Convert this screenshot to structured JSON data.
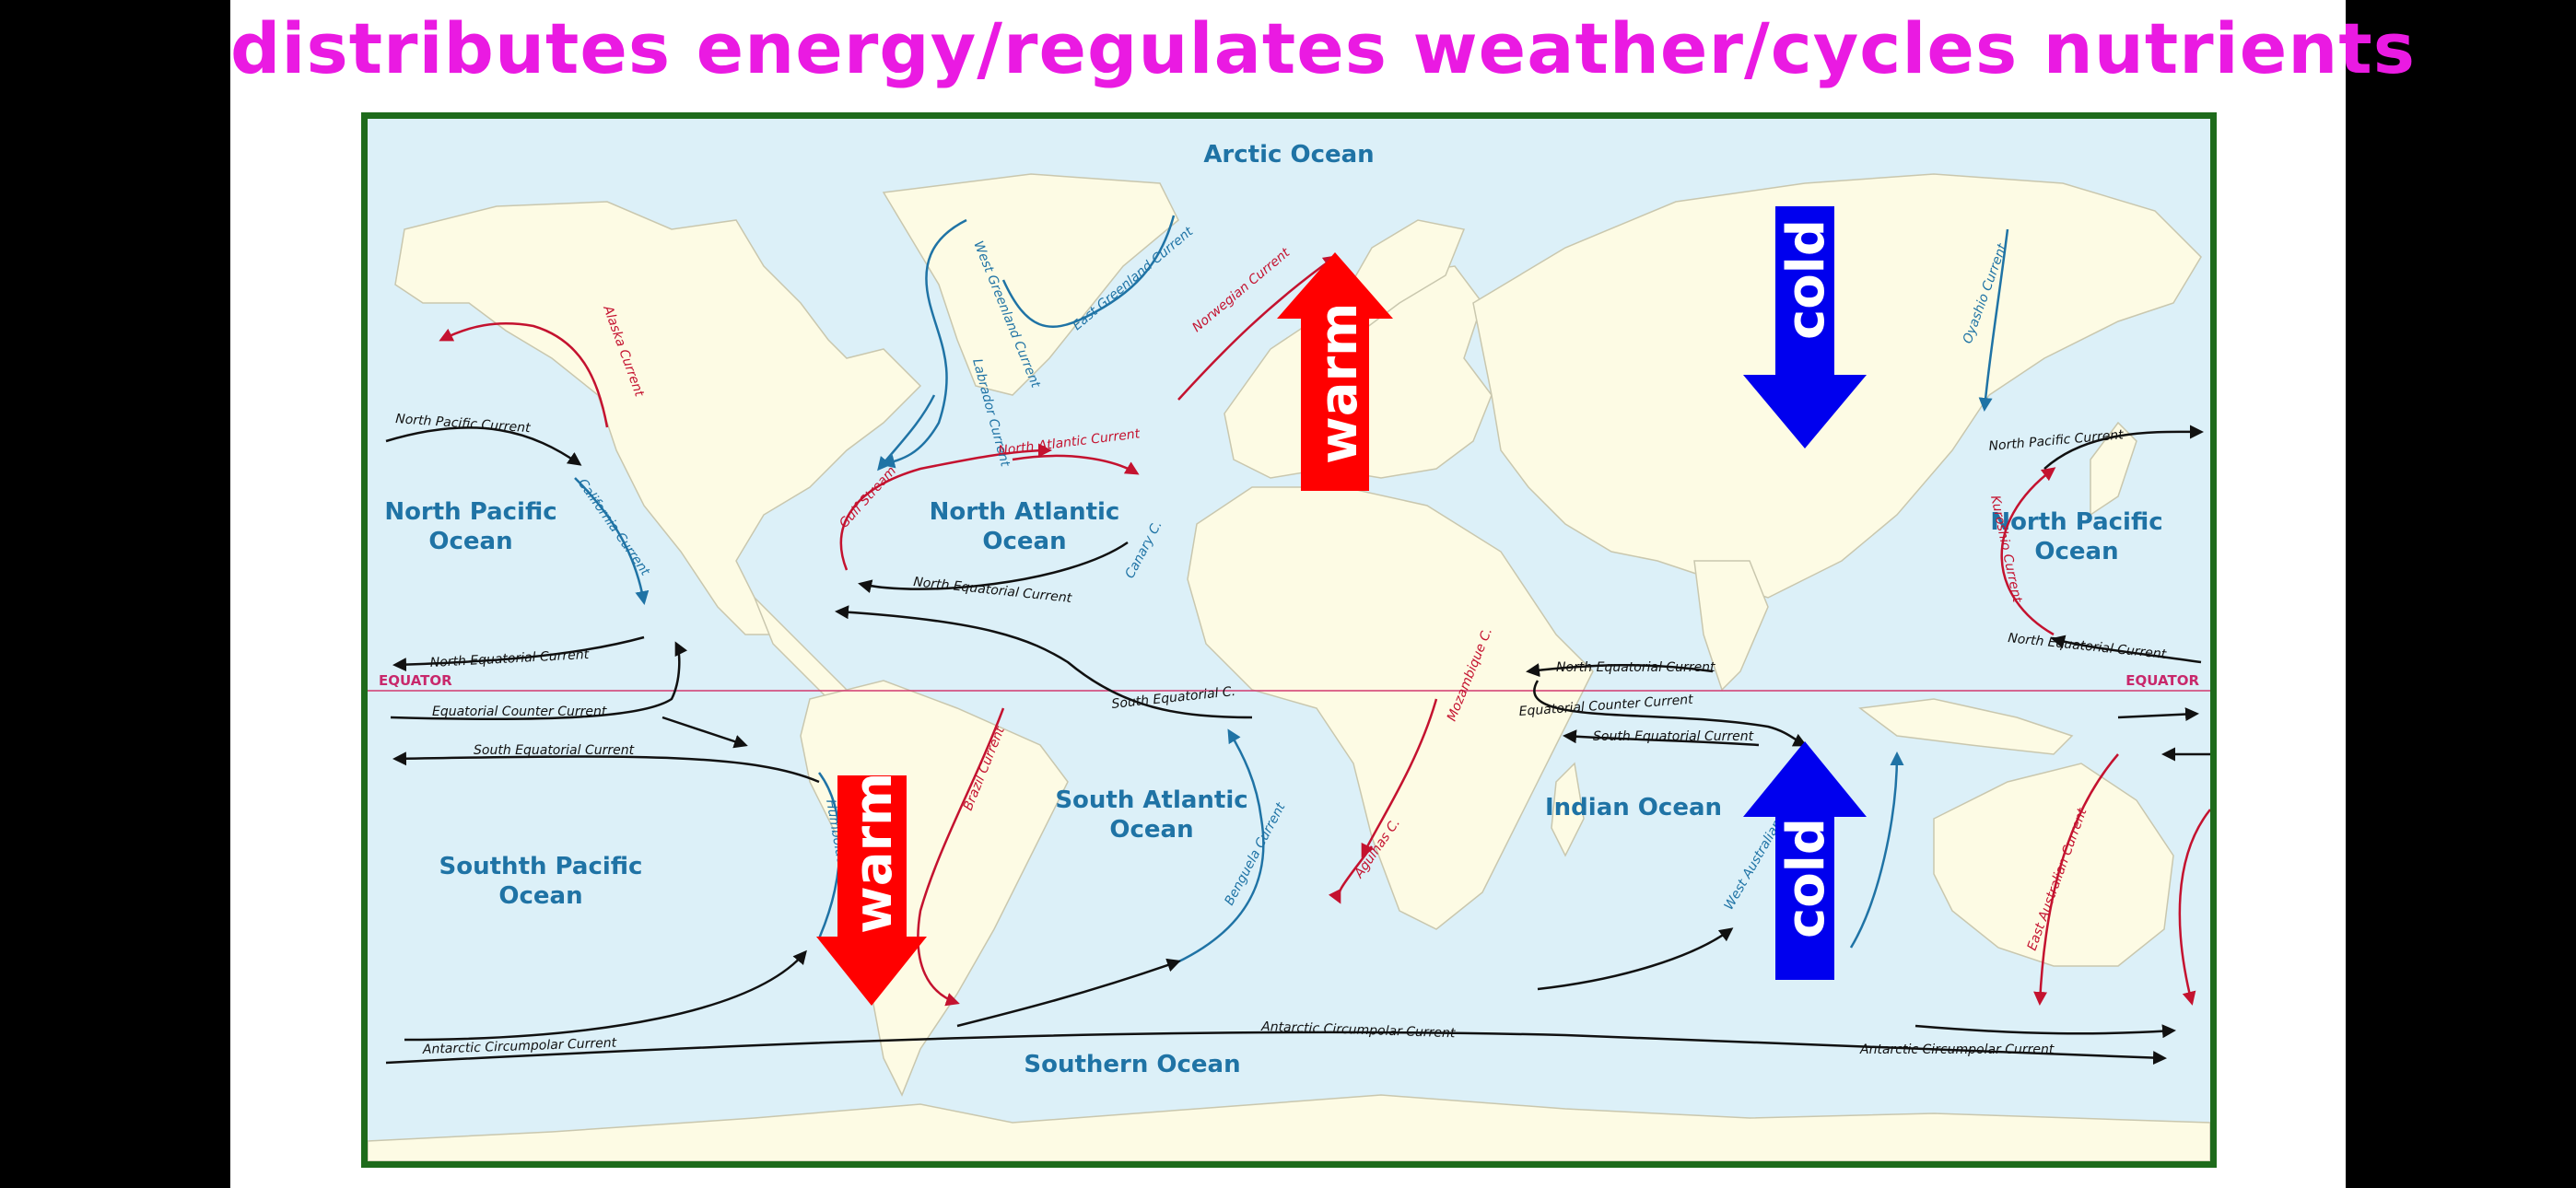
{
  "title": "distributes energy/regulates weather/cycles nutrients",
  "oceans": {
    "arctic": "Arctic Ocean",
    "north_pacific_west": [
      "North Pacific",
      "Ocean"
    ],
    "north_pacific_east": [
      "North Pacific",
      "Ocean"
    ],
    "north_atlantic": [
      "North Atlantic",
      "Ocean"
    ],
    "south_atlantic": [
      "South Atlantic",
      "Ocean"
    ],
    "south_pacific": [
      "Southth Pacific",
      "Ocean"
    ],
    "indian": "Indian Ocean",
    "southern": "Southern Ocean"
  },
  "equator": {
    "left": "EQUATOR",
    "right": "EQUATOR"
  },
  "currents": {
    "west_greenland": "West Greenland Current",
    "east_greenland": "East Greenland Current",
    "labrador": "Labrador Current",
    "norwegian": "Norwegian Current",
    "alaska": "Alaska Current",
    "north_pacific_w": "North Pacific Current",
    "california": "California Current",
    "gulf_stream": "Gulf Stream",
    "north_atlantic": "North Atlantic Current",
    "canary": "Canary C.",
    "north_equatorial_atl": "North Equatorial Current",
    "north_equatorial_pac_w": "North Equatorial Current",
    "equatorial_counter_w": "Equatorial Counter Current",
    "south_equatorial_w": "South Equatorial Current",
    "south_equatorial_atl": "South Equatorial C.",
    "humboldt": "Humboldt Current",
    "brazil": "Brazil Current",
    "benguela": "Benguela Current",
    "mozambique": "Mozambique C.",
    "agulhas": "Agulhas C.",
    "north_equatorial_ind": "North Equatorial Current",
    "equatorial_counter_ind": "Equatorial Counter Current",
    "south_equatorial_ind": "South Equatorial Current",
    "west_australian": "West Australian Current",
    "oyashio": "Oyashio Current",
    "kuroshio": "Kuroshio Current",
    "north_pacific_e": "North Pacific Current",
    "north_equatorial_pac_e": "North Equatorial Current",
    "east_australian": "East Australian Current",
    "antarctic_1": "Antarctic Circumpolar Current",
    "antarctic_2": "Antarctic Circumpolar Current",
    "antarctic_3": "Antarctic Circumpolar Current"
  },
  "arrows": {
    "warm_top": "warm",
    "warm_bottom": "warm",
    "cold_top": "cold",
    "cold_bottom": "cold"
  },
  "colors": {
    "title": "#ea1ae2",
    "frame": "#1e6b1b",
    "sea": "#dcf0f8",
    "land": "#fdfbe4",
    "warm_current": "#c4122f",
    "cold_current": "#1f73a5",
    "neutral_current": "#111111",
    "warm_arrow": "#ff0000",
    "cold_arrow": "#0000ee"
  }
}
